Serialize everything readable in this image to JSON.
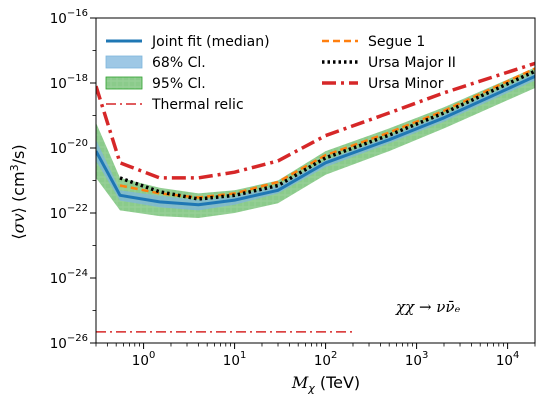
{
  "chart_data": {
    "type": "line",
    "xlabel": "M_χ (TeV)",
    "ylabel": "⟨σv⟩ (cm³/s)",
    "x_scale": "log",
    "y_scale": "log",
    "xlim": [
      0.3,
      20000
    ],
    "ylim": [
      1e-26,
      1e-16
    ],
    "x_ticks": [
      {
        "value": 1,
        "base": "10",
        "exp": "0"
      },
      {
        "value": 10,
        "base": "10",
        "exp": "1"
      },
      {
        "value": 100,
        "base": "10",
        "exp": "2"
      },
      {
        "value": 1000,
        "base": "10",
        "exp": "3"
      },
      {
        "value": 10000,
        "base": "10",
        "exp": "4"
      }
    ],
    "y_ticks": [
      {
        "value": 1e-26,
        "base": "10",
        "exp": "−26"
      },
      {
        "value": 1e-24,
        "base": "10",
        "exp": "−24"
      },
      {
        "value": 1e-22,
        "base": "10",
        "exp": "−22"
      },
      {
        "value": 1e-20,
        "base": "10",
        "exp": "−20"
      },
      {
        "value": 1e-18,
        "base": "10",
        "exp": "−18"
      },
      {
        "value": 1e-16,
        "base": "10",
        "exp": "−16"
      }
    ],
    "grid": false,
    "legend_position": "top",
    "annotation": "χχ → νν̄ₑ",
    "bands": [
      {
        "name": "95% Cl.",
        "color": "#2ca02c",
        "x": [
          0.3,
          0.55,
          1.5,
          4,
          10,
          30,
          100,
          500,
          2000,
          20000
        ],
        "lower": [
          1.2e-21,
          1.2e-22,
          8e-23,
          7e-23,
          1e-22,
          2e-22,
          1.5e-21,
          8e-21,
          4e-20,
          7e-19
        ],
        "upper": [
          6e-20,
          1.2e-21,
          6e-22,
          4e-22,
          5e-22,
          1e-21,
          8e-21,
          4e-20,
          1.8e-19,
          3e-18
        ]
      },
      {
        "name": "68% Cl.",
        "color": "#7eb6dc",
        "x": [
          0.3,
          0.55,
          1.5,
          4,
          10,
          30,
          100,
          500,
          2000,
          20000
        ],
        "lower": [
          4e-21,
          2.4e-22,
          1.5e-22,
          1.2e-22,
          1.8e-22,
          4e-22,
          2.6e-21,
          1.4e-20,
          6.5e-20,
          1.2e-18
        ],
        "upper": [
          1.8e-20,
          5e-22,
          3.4e-22,
          2.5e-22,
          3.3e-22,
          7e-22,
          4.2e-21,
          2.3e-20,
          1.1e-19,
          2e-18
        ]
      }
    ],
    "series": [
      {
        "name": "Joint fit (median)",
        "color": "#1f77b4",
        "style": "solid",
        "x": [
          0.3,
          0.55,
          1.5,
          4,
          10,
          30,
          100,
          500,
          2000,
          20000
        ],
        "y": [
          8e-21,
          3.5e-22,
          2.2e-22,
          1.8e-22,
          2.5e-22,
          5e-22,
          3.5e-21,
          1.8e-20,
          8.5e-20,
          1.6e-18
        ]
      },
      {
        "name": "Segue 1",
        "color": "#ff7f0e",
        "style": "dashed",
        "x": [
          0.55,
          1.5,
          4,
          10,
          30,
          100,
          500,
          2000,
          20000
        ],
        "y": [
          7e-22,
          4e-22,
          3e-22,
          4e-22,
          9e-22,
          6e-21,
          3e-20,
          1.4e-19,
          2.8e-18
        ]
      },
      {
        "name": "Ursa Major II",
        "color": "#000000",
        "style": "dotted",
        "x": [
          0.55,
          1.5,
          4,
          10,
          30,
          100,
          500,
          2000,
          20000
        ],
        "y": [
          1.2e-21,
          4.5e-22,
          2.7e-22,
          3.5e-22,
          7e-22,
          5e-21,
          2.5e-20,
          1.2e-19,
          2.3e-18
        ]
      },
      {
        "name": "Ursa Minor",
        "color": "#d62728",
        "style": "dashdot",
        "x": [
          0.3,
          0.55,
          1.5,
          4,
          10,
          30,
          100,
          500,
          2000,
          20000
        ],
        "y": [
          8e-19,
          3.5e-21,
          1.2e-21,
          1.2e-21,
          1.8e-21,
          4e-21,
          2.4e-20,
          1.2e-19,
          5e-19,
          4e-18
        ]
      },
      {
        "name": "Thermal relic",
        "color": "#d62728",
        "style": "dashdot-thin",
        "x": [
          0.3,
          200
        ],
        "y": [
          2.2e-26,
          2.2e-26
        ]
      }
    ]
  }
}
